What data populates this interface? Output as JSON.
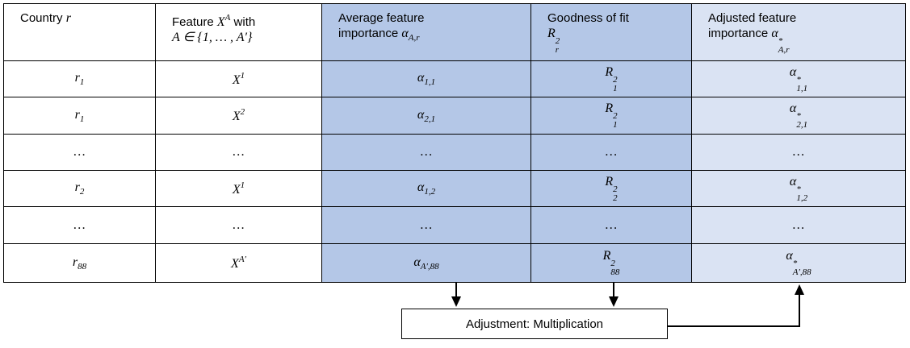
{
  "table": {
    "header": [
      [
        [
          {
            "text": "Country "
          },
          {
            "math": "r"
          }
        ]
      ],
      [
        [
          {
            "text": "Feature "
          },
          {
            "math": "X",
            "sup": "A"
          },
          {
            "text": " with"
          }
        ],
        [
          {
            "math": "A ∈ {1, … , A′}"
          }
        ]
      ],
      [
        [
          {
            "text": "Average feature"
          }
        ],
        [
          {
            "text": "importance "
          },
          {
            "math": "α",
            "sub": "A,r"
          }
        ]
      ],
      [
        [
          {
            "text": "Goodness of fit"
          }
        ],
        [
          {
            "math": "R",
            "sup": "2",
            "sub": "r"
          }
        ]
      ],
      [
        [
          {
            "text": "Adjusted feature"
          }
        ],
        [
          {
            "text": "importance "
          },
          {
            "math": "α",
            "sup": "*",
            "sub": "A,r"
          }
        ]
      ]
    ],
    "rows": [
      [
        {
          "math": "r",
          "sub": "1"
        },
        {
          "math": "X",
          "sup": "1"
        },
        {
          "math": "α",
          "sub": "1,1"
        },
        {
          "math": "R",
          "sup": "2",
          "sub": "1"
        },
        {
          "math": "α",
          "sup": "*",
          "sub": "1,1"
        }
      ],
      [
        {
          "math": "r",
          "sub": "1"
        },
        {
          "math": "X",
          "sup": "2"
        },
        {
          "math": "α",
          "sub": "2,1"
        },
        {
          "math": "R",
          "sup": "2",
          "sub": "1"
        },
        {
          "math": "α",
          "sup": "*",
          "sub": "2,1"
        }
      ],
      [
        {
          "math": "…"
        },
        {
          "math": "…"
        },
        {
          "math": "…"
        },
        {
          "math": "…"
        },
        {
          "math": "…"
        }
      ],
      [
        {
          "math": "r",
          "sub": "2"
        },
        {
          "math": "X",
          "sup": "1"
        },
        {
          "math": "α",
          "sub": "1,2"
        },
        {
          "math": "R",
          "sup": "2",
          "sub": "2"
        },
        {
          "math": "α",
          "sup": "*",
          "sub": "1,2"
        }
      ],
      [
        {
          "math": "…"
        },
        {
          "math": "…"
        },
        {
          "math": "…"
        },
        {
          "math": "…"
        },
        {
          "math": "…"
        }
      ],
      [
        {
          "math": "r",
          "sub": "88"
        },
        {
          "math": "X",
          "sup": "A′"
        },
        {
          "math": "α",
          "sub": "A′,88"
        },
        {
          "math": "R",
          "sup": "2",
          "sub": "88"
        },
        {
          "math": "α",
          "sup": "*",
          "sub": "A′,88"
        }
      ]
    ]
  },
  "box": {
    "label": "Adjustment: Multiplication"
  }
}
